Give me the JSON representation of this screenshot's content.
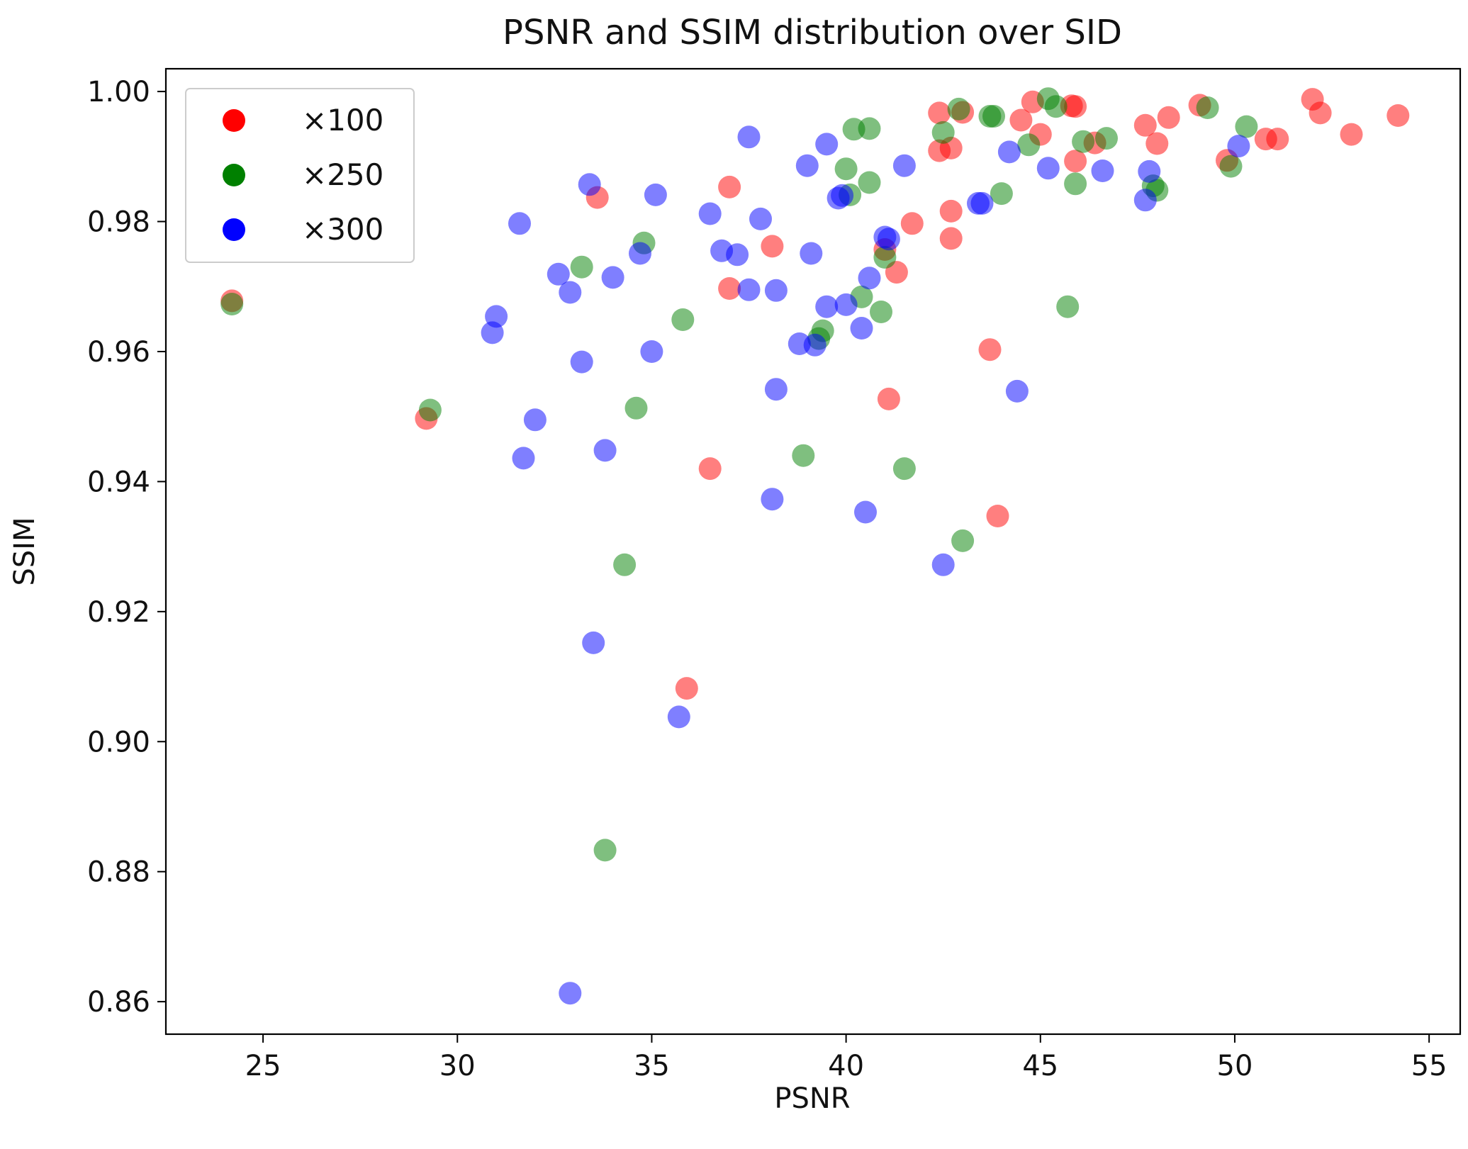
{
  "chart_data": {
    "type": "scatter",
    "title": "PSNR and SSIM distribution over SID",
    "xlabel": "PSNR",
    "ylabel": "SSIM",
    "xlim": [
      22.5,
      55.8
    ],
    "ylim": [
      0.855,
      1.0035
    ],
    "xticks": [
      25,
      30,
      35,
      40,
      45,
      50,
      55
    ],
    "yticks": [
      0.86,
      0.88,
      0.9,
      0.92,
      0.94,
      0.96,
      0.98,
      1.0
    ],
    "ytick_labels": [
      "0.86",
      "0.88",
      "0.90",
      "0.92",
      "0.94",
      "0.96",
      "0.98",
      "1.00"
    ],
    "legend_position": "top-left",
    "series": [
      {
        "name": "×100",
        "color": "#ff0000",
        "points": [
          [
            24.2,
            0.9678
          ],
          [
            29.2,
            0.9497
          ],
          [
            33.6,
            0.9837
          ],
          [
            35.9,
            0.9082
          ],
          [
            36.5,
            0.942
          ],
          [
            37.0,
            0.9853
          ],
          [
            37.0,
            0.9697
          ],
          [
            38.1,
            0.9762
          ],
          [
            41.0,
            0.9757
          ],
          [
            41.1,
            0.9527
          ],
          [
            41.3,
            0.9722
          ],
          [
            41.7,
            0.9797
          ],
          [
            42.4,
            0.9967
          ],
          [
            42.4,
            0.9909
          ],
          [
            42.7,
            0.9913
          ],
          [
            42.7,
            0.9816
          ],
          [
            42.7,
            0.9774
          ],
          [
            43.0,
            0.9968
          ],
          [
            43.7,
            0.9603
          ],
          [
            43.9,
            0.9347
          ],
          [
            44.5,
            0.9956
          ],
          [
            44.8,
            0.9984
          ],
          [
            45.0,
            0.9934
          ],
          [
            45.8,
            0.9978
          ],
          [
            45.9,
            0.9977
          ],
          [
            45.9,
            0.9893
          ],
          [
            46.4,
            0.9921
          ],
          [
            47.7,
            0.9948
          ],
          [
            48.0,
            0.992
          ],
          [
            48.3,
            0.996
          ],
          [
            49.1,
            0.9979
          ],
          [
            49.8,
            0.9894
          ],
          [
            50.8,
            0.9927
          ],
          [
            51.1,
            0.9927
          ],
          [
            52.0,
            0.9988
          ],
          [
            52.2,
            0.9967
          ],
          [
            53.0,
            0.9934
          ],
          [
            54.2,
            0.9963
          ]
        ]
      },
      {
        "name": "×250",
        "color": "#008000",
        "points": [
          [
            24.2,
            0.9673
          ],
          [
            29.3,
            0.951
          ],
          [
            33.2,
            0.973
          ],
          [
            33.8,
            0.8833
          ],
          [
            34.3,
            0.9272
          ],
          [
            34.6,
            0.9513
          ],
          [
            34.8,
            0.9767
          ],
          [
            35.8,
            0.9649
          ],
          [
            38.9,
            0.944
          ],
          [
            39.3,
            0.962
          ],
          [
            39.4,
            0.9632
          ],
          [
            40.0,
            0.9881
          ],
          [
            40.1,
            0.9841
          ],
          [
            40.2,
            0.9942
          ],
          [
            40.4,
            0.9684
          ],
          [
            40.6,
            0.986
          ],
          [
            40.6,
            0.9943
          ],
          [
            40.9,
            0.9661
          ],
          [
            41.0,
            0.9745
          ],
          [
            41.5,
            0.942
          ],
          [
            42.5,
            0.9937
          ],
          [
            42.9,
            0.9973
          ],
          [
            43.0,
            0.9309
          ],
          [
            43.7,
            0.9962
          ],
          [
            43.8,
            0.9962
          ],
          [
            44.0,
            0.9843
          ],
          [
            44.7,
            0.9918
          ],
          [
            45.2,
            0.9989
          ],
          [
            45.4,
            0.9977
          ],
          [
            45.7,
            0.9669
          ],
          [
            45.9,
            0.9858
          ],
          [
            46.1,
            0.9923
          ],
          [
            46.7,
            0.9928
          ],
          [
            47.9,
            0.9855
          ],
          [
            48.0,
            0.9848
          ],
          [
            49.3,
            0.9975
          ],
          [
            49.9,
            0.9885
          ],
          [
            50.3,
            0.9946
          ]
        ]
      },
      {
        "name": "×300",
        "color": "#0000ff",
        "points": [
          [
            30.9,
            0.9629
          ],
          [
            31.0,
            0.9654
          ],
          [
            31.6,
            0.9797
          ],
          [
            31.7,
            0.9436
          ],
          [
            32.0,
            0.9495
          ],
          [
            32.6,
            0.9719
          ],
          [
            32.9,
            0.9691
          ],
          [
            32.9,
            0.8613
          ],
          [
            33.2,
            0.9584
          ],
          [
            33.4,
            0.9857
          ],
          [
            33.5,
            0.9152
          ],
          [
            33.8,
            0.9448
          ],
          [
            34.0,
            0.9714
          ],
          [
            34.7,
            0.9751
          ],
          [
            35.0,
            0.96
          ],
          [
            35.1,
            0.9841
          ],
          [
            35.7,
            0.9038
          ],
          [
            36.5,
            0.9812
          ],
          [
            36.8,
            0.9755
          ],
          [
            37.2,
            0.9749
          ],
          [
            37.5,
            0.993
          ],
          [
            37.5,
            0.9695
          ],
          [
            37.8,
            0.9804
          ],
          [
            38.1,
            0.9373
          ],
          [
            38.2,
            0.9694
          ],
          [
            38.2,
            0.9542
          ],
          [
            38.8,
            0.9612
          ],
          [
            39.0,
            0.9886
          ],
          [
            39.1,
            0.9751
          ],
          [
            39.2,
            0.961
          ],
          [
            39.5,
            0.9919
          ],
          [
            39.5,
            0.9669
          ],
          [
            39.8,
            0.9836
          ],
          [
            39.9,
            0.984
          ],
          [
            40.0,
            0.9672
          ],
          [
            40.4,
            0.9636
          ],
          [
            40.5,
            0.9353
          ],
          [
            40.6,
            0.9713
          ],
          [
            41.0,
            0.9776
          ],
          [
            41.1,
            0.9773
          ],
          [
            41.5,
            0.9886
          ],
          [
            42.5,
            0.9272
          ],
          [
            43.4,
            0.9828
          ],
          [
            43.5,
            0.9828
          ],
          [
            44.2,
            0.9907
          ],
          [
            44.4,
            0.9539
          ],
          [
            45.2,
            0.9882
          ],
          [
            46.6,
            0.9878
          ],
          [
            47.7,
            0.9833
          ],
          [
            47.8,
            0.9877
          ],
          [
            50.1,
            0.9916
          ]
        ]
      }
    ]
  }
}
